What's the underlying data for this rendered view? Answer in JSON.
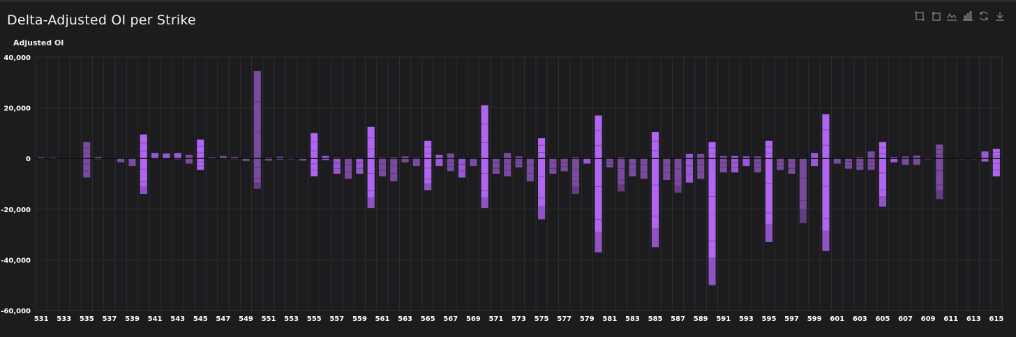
{
  "title": "Delta-Adjusted OI per Strike",
  "toolbox": [
    {
      "name": "zoom-icon",
      "glyph": "zoom"
    },
    {
      "name": "zoom-reset-icon",
      "glyph": "back"
    },
    {
      "name": "line-chart-icon",
      "glyph": "line"
    },
    {
      "name": "bar-chart-icon",
      "glyph": "bar"
    },
    {
      "name": "restore-icon",
      "glyph": "restore"
    },
    {
      "name": "download-icon",
      "glyph": "download"
    }
  ],
  "colors": {
    "background": "#1c1c1e",
    "grid": "#2f2f33",
    "bar_light": "#b066f0",
    "bar_mid": "#9a58d6",
    "bar_dark": "#7a4a9e"
  },
  "chart_data": {
    "type": "bar",
    "stacked": true,
    "title": "Delta-Adjusted OI per Strike",
    "ylabel": "Adjusted OI",
    "ylim": [
      -60000,
      40000
    ],
    "yticks": [
      40000,
      20000,
      0,
      -20000,
      -40000,
      -60000
    ],
    "ytick_labels": [
      "40,000",
      "20,000",
      "0",
      "-20,000",
      "-40,000",
      "-60,000"
    ],
    "grid": true,
    "x_start": 531,
    "x_end": 615,
    "x_step": 0.5,
    "xtick_labels": [
      "531",
      "533",
      "535",
      "537",
      "539",
      "541",
      "543",
      "545",
      "547",
      "549",
      "551",
      "553",
      "555",
      "557",
      "559",
      "561",
      "563",
      "565",
      "567",
      "569",
      "571",
      "573",
      "575",
      "577",
      "579",
      "581",
      "583",
      "585",
      "587",
      "589",
      "591",
      "593",
      "595",
      "597",
      "599",
      "601",
      "603",
      "605",
      "607",
      "609",
      "611",
      "613",
      "615"
    ],
    "bars": [
      {
        "strike": 531,
        "pos": 500,
        "neg": -200,
        "shade": "dark"
      },
      {
        "strike": 532,
        "pos": 400,
        "neg": -200,
        "shade": "dark"
      },
      {
        "strike": 535,
        "pos": 6500,
        "neg": -7500,
        "shade": "dark"
      },
      {
        "strike": 536,
        "pos": 600,
        "neg": -300,
        "shade": "dark"
      },
      {
        "strike": 538,
        "pos": 300,
        "neg": -1500,
        "shade": "dark"
      },
      {
        "strike": 539,
        "pos": 300,
        "neg": -3000,
        "shade": "dark"
      },
      {
        "strike": 540,
        "pos": 9500,
        "neg": -14000,
        "shade": "light"
      },
      {
        "strike": 541,
        "pos": 2200,
        "neg": -200,
        "shade": "mid"
      },
      {
        "strike": 542,
        "pos": 2000,
        "neg": -200,
        "shade": "mid"
      },
      {
        "strike": 543,
        "pos": 2200,
        "neg": -300,
        "shade": "mid"
      },
      {
        "strike": 544,
        "pos": 1500,
        "neg": -2000,
        "shade": "dark"
      },
      {
        "strike": 545,
        "pos": 7500,
        "neg": -4500,
        "shade": "light"
      },
      {
        "strike": 546,
        "pos": 500,
        "neg": -200,
        "shade": "dark"
      },
      {
        "strike": 547,
        "pos": 1000,
        "neg": -200,
        "shade": "dark"
      },
      {
        "strike": 548,
        "pos": 600,
        "neg": -300,
        "shade": "dark"
      },
      {
        "strike": 549,
        "pos": 300,
        "neg": -1000,
        "shade": "dark"
      },
      {
        "strike": 550,
        "pos": 34500,
        "neg": -12000,
        "shade": "dark"
      },
      {
        "strike": 551,
        "pos": 400,
        "neg": -800,
        "shade": "dark"
      },
      {
        "strike": 552,
        "pos": 700,
        "neg": -400,
        "shade": "dark"
      },
      {
        "strike": 553,
        "pos": 300,
        "neg": -300,
        "shade": "dark"
      },
      {
        "strike": 554,
        "pos": 300,
        "neg": -800,
        "shade": "dark"
      },
      {
        "strike": 555,
        "pos": 10000,
        "neg": -7000,
        "shade": "light"
      },
      {
        "strike": 556,
        "pos": 1000,
        "neg": -600,
        "shade": "mid"
      },
      {
        "strike": 557,
        "pos": 400,
        "neg": -6000,
        "shade": "mid"
      },
      {
        "strike": 558,
        "pos": 300,
        "neg": -8000,
        "shade": "dark"
      },
      {
        "strike": 559,
        "pos": 300,
        "neg": -6000,
        "shade": "mid"
      },
      {
        "strike": 560,
        "pos": 12500,
        "neg": -19500,
        "shade": "light"
      },
      {
        "strike": 561,
        "pos": 400,
        "neg": -7000,
        "shade": "dark"
      },
      {
        "strike": 562,
        "pos": 500,
        "neg": -9000,
        "shade": "dark"
      },
      {
        "strike": 563,
        "pos": 800,
        "neg": -1500,
        "shade": "dark"
      },
      {
        "strike": 564,
        "pos": 400,
        "neg": -3000,
        "shade": "dark"
      },
      {
        "strike": 565,
        "pos": 7000,
        "neg": -12500,
        "shade": "light"
      },
      {
        "strike": 566,
        "pos": 1500,
        "neg": -3000,
        "shade": "mid"
      },
      {
        "strike": 567,
        "pos": 2000,
        "neg": -5000,
        "shade": "dark"
      },
      {
        "strike": 568,
        "pos": 300,
        "neg": -7500,
        "shade": "mid"
      },
      {
        "strike": 569,
        "pos": 300,
        "neg": -3000,
        "shade": "dark"
      },
      {
        "strike": 570,
        "pos": 21000,
        "neg": -19500,
        "shade": "light"
      },
      {
        "strike": 571,
        "pos": 300,
        "neg": -6000,
        "shade": "dark"
      },
      {
        "strike": 572,
        "pos": 2200,
        "neg": -7000,
        "shade": "dark"
      },
      {
        "strike": 573,
        "pos": 800,
        "neg": -3500,
        "shade": "dark"
      },
      {
        "strike": 574,
        "pos": 300,
        "neg": -9000,
        "shade": "dark"
      },
      {
        "strike": 575,
        "pos": 8000,
        "neg": -24000,
        "shade": "light"
      },
      {
        "strike": 576,
        "pos": 300,
        "neg": -6000,
        "shade": "dark"
      },
      {
        "strike": 577,
        "pos": 300,
        "neg": -5000,
        "shade": "dark"
      },
      {
        "strike": 578,
        "pos": 500,
        "neg": -14000,
        "shade": "dark"
      },
      {
        "strike": 579,
        "pos": 300,
        "neg": -2000,
        "shade": "mid"
      },
      {
        "strike": 580,
        "pos": 17000,
        "neg": -37000,
        "shade": "light"
      },
      {
        "strike": 581,
        "pos": 300,
        "neg": -3500,
        "shade": "dark"
      },
      {
        "strike": 582,
        "pos": 500,
        "neg": -13000,
        "shade": "dark"
      },
      {
        "strike": 583,
        "pos": 300,
        "neg": -7000,
        "shade": "dark"
      },
      {
        "strike": 584,
        "pos": 300,
        "neg": -8000,
        "shade": "dark"
      },
      {
        "strike": 585,
        "pos": 10500,
        "neg": -35000,
        "shade": "light"
      },
      {
        "strike": 586,
        "pos": 300,
        "neg": -8500,
        "shade": "dark"
      },
      {
        "strike": 587,
        "pos": 300,
        "neg": -13500,
        "shade": "dark"
      },
      {
        "strike": 588,
        "pos": 1800,
        "neg": -9500,
        "shade": "mid"
      },
      {
        "strike": 589,
        "pos": 1800,
        "neg": -8000,
        "shade": "dark"
      },
      {
        "strike": 590,
        "pos": 6500,
        "neg": -50000,
        "shade": "light"
      },
      {
        "strike": 591,
        "pos": 1000,
        "neg": -5500,
        "shade": "dark"
      },
      {
        "strike": 592,
        "pos": 1000,
        "neg": -5500,
        "shade": "mid"
      },
      {
        "strike": 593,
        "pos": 800,
        "neg": -3000,
        "shade": "mid"
      },
      {
        "strike": 594,
        "pos": 800,
        "neg": -5500,
        "shade": "dark"
      },
      {
        "strike": 595,
        "pos": 7000,
        "neg": -33000,
        "shade": "light"
      },
      {
        "strike": 596,
        "pos": 300,
        "neg": -4500,
        "shade": "dark"
      },
      {
        "strike": 597,
        "pos": 300,
        "neg": -6000,
        "shade": "dark"
      },
      {
        "strike": 598,
        "pos": 300,
        "neg": -25500,
        "shade": "dark"
      },
      {
        "strike": 599,
        "pos": 2200,
        "neg": -3000,
        "shade": "mid"
      },
      {
        "strike": 600,
        "pos": 17500,
        "neg": -36500,
        "shade": "light"
      },
      {
        "strike": 601,
        "pos": 300,
        "neg": -2000,
        "shade": "dark"
      },
      {
        "strike": 602,
        "pos": 300,
        "neg": -4000,
        "shade": "dark"
      },
      {
        "strike": 603,
        "pos": 500,
        "neg": -4500,
        "shade": "dark"
      },
      {
        "strike": 604,
        "pos": 2800,
        "neg": -4500,
        "shade": "dark"
      },
      {
        "strike": 605,
        "pos": 6500,
        "neg": -19000,
        "shade": "light"
      },
      {
        "strike": 606,
        "pos": 500,
        "neg": -1500,
        "shade": "mid"
      },
      {
        "strike": 607,
        "pos": 800,
        "neg": -2500,
        "shade": "dark"
      },
      {
        "strike": 608,
        "pos": 1200,
        "neg": -2500,
        "shade": "dark"
      },
      {
        "strike": 609,
        "pos": 300,
        "neg": -300,
        "shade": "dark"
      },
      {
        "strike": 610,
        "pos": 5500,
        "neg": -16000,
        "shade": "dark"
      },
      {
        "strike": 612,
        "pos": 200,
        "neg": -300,
        "shade": "dark"
      },
      {
        "strike": 613,
        "pos": 200,
        "neg": -300,
        "shade": "dark"
      },
      {
        "strike": 614,
        "pos": 2800,
        "neg": -1200,
        "shade": "mid"
      },
      {
        "strike": 615,
        "pos": 3800,
        "neg": -7000,
        "shade": "light"
      }
    ]
  }
}
